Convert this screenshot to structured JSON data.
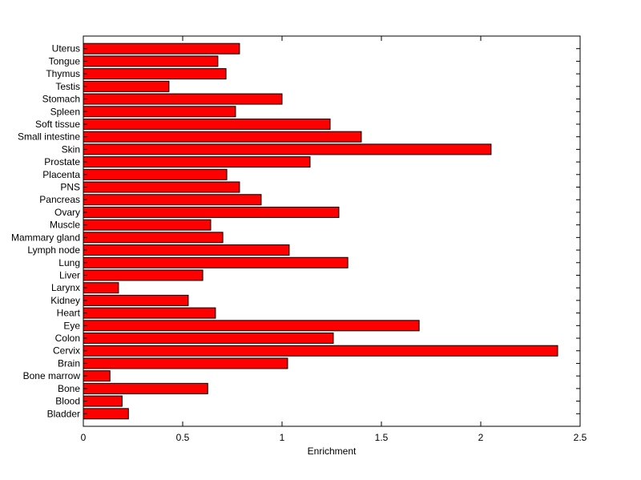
{
  "chart_data": {
    "type": "bar",
    "orientation": "horizontal",
    "title": "",
    "xlabel": "Enrichment",
    "ylabel": "",
    "xlim": [
      0,
      2.5
    ],
    "xticks": [
      0,
      0.5,
      1,
      1.5,
      2,
      2.5
    ],
    "xtick_labels": [
      "0",
      "0.5",
      "1",
      "1.5",
      "2",
      "2.5"
    ],
    "grid": false,
    "bar_color": "#ff0000",
    "categories": [
      "Bladder",
      "Blood",
      "Bone",
      "Bone marrow",
      "Brain",
      "Cervix",
      "Colon",
      "Eye",
      "Heart",
      "Kidney",
      "Larynx",
      "Liver",
      "Lung",
      "Lymph node",
      "Mammary gland",
      "Muscle",
      "Ovary",
      "Pancreas",
      "PNS",
      "Placenta",
      "Prostate",
      "Skin",
      "Small intestine",
      "Soft tissue",
      "Spleen",
      "Stomach",
      "Testis",
      "Thymus",
      "Tongue",
      "Uterus"
    ],
    "values": [
      0.227,
      0.195,
      0.626,
      0.134,
      1.028,
      2.387,
      1.258,
      1.69,
      0.665,
      0.528,
      0.177,
      0.601,
      1.331,
      1.036,
      0.702,
      0.641,
      1.286,
      0.895,
      0.786,
      0.722,
      1.141,
      2.052,
      1.399,
      1.242,
      0.766,
      1.0,
      0.431,
      0.718,
      0.677,
      0.786
    ]
  }
}
